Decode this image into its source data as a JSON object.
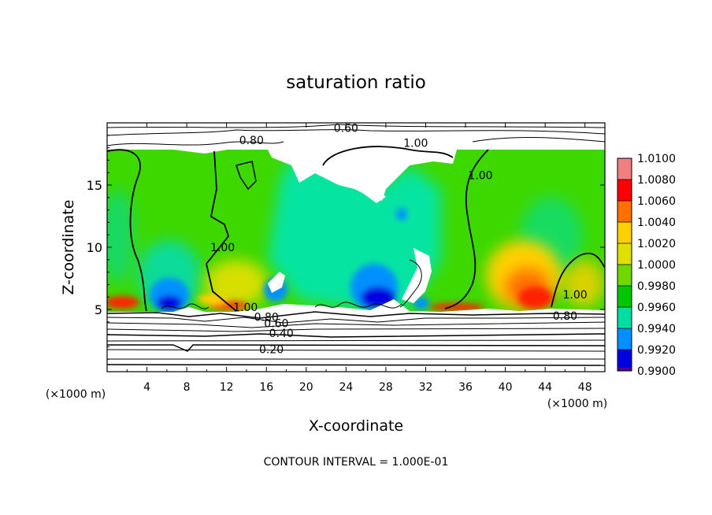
{
  "chart_data": {
    "type": "heatmap",
    "title": "saturation ratio",
    "xlabel": "X-coordinate",
    "ylabel": "Z-coordinate",
    "x_unit": "(×1000 m)",
    "y_unit": "(×1000 m)",
    "xlim": [
      0,
      50
    ],
    "ylim": [
      0,
      20
    ],
    "x_ticks": [
      4,
      8,
      12,
      16,
      20,
      24,
      28,
      32,
      36,
      40,
      44,
      48
    ],
    "y_ticks": [
      5,
      10,
      15
    ],
    "footer": "CONTOUR INTERVAL = 1.000E-01",
    "colorbar": {
      "levels": [
        "1.0100",
        "1.0080",
        "1.0060",
        "1.0040",
        "1.0020",
        "1.0000",
        "0.9980",
        "0.9960",
        "0.9940",
        "0.9920",
        "0.9900"
      ],
      "colors": [
        "#f08080",
        "#ff0000",
        "#ff7000",
        "#ffd000",
        "#e0e000",
        "#70d800",
        "#00c800",
        "#00e0a0",
        "#0090ff",
        "#0000e0",
        "#5000a0"
      ]
    },
    "contour_labels": [
      {
        "text": "0.60",
        "x": 24.0,
        "z": 19.6
      },
      {
        "text": "0.80",
        "x": 14.5,
        "z": 18.6
      },
      {
        "text": "1.00",
        "x": 31.0,
        "z": 18.4
      },
      {
        "text": "1.00",
        "x": 37.5,
        "z": 15.8
      },
      {
        "text": "1.00",
        "x": 11.6,
        "z": 10.0
      },
      {
        "text": "1.00",
        "x": 47.0,
        "z": 6.2
      },
      {
        "text": "1.00",
        "x": 13.9,
        "z": 5.2
      },
      {
        "text": "0.80",
        "x": 16.0,
        "z": 4.4
      },
      {
        "text": "0.80",
        "x": 46.0,
        "z": 4.5
      },
      {
        "text": "0.60",
        "x": 17.0,
        "z": 3.9
      },
      {
        "text": "0.40",
        "x": 17.5,
        "z": 3.1
      },
      {
        "text": "0.20",
        "x": 16.5,
        "z": 1.8
      }
    ]
  }
}
